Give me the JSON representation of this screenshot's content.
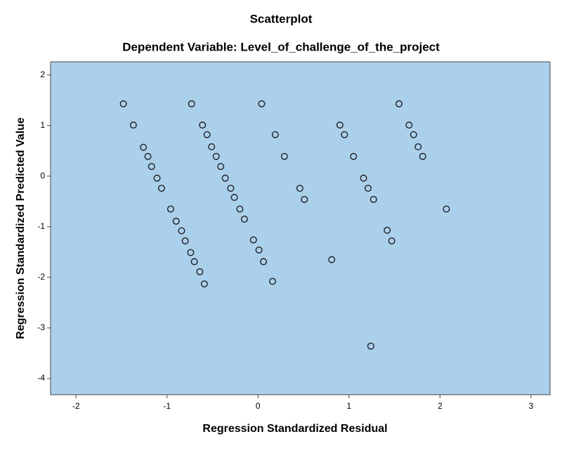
{
  "chart_data": {
    "type": "scatter",
    "title": "Scatterplot",
    "subtitle": "Dependent Variable: Level_of_challenge_of_the_project",
    "xlabel": "Regression Standardized Residual",
    "ylabel": "Regression Standardized Predicted Value",
    "plot_background": "#abd0ec",
    "color": "#1f1f1f",
    "xlim": [
      -2.28,
      3.21
    ],
    "ylim": [
      -4.32,
      2.26
    ],
    "xticks": [
      -2,
      -1,
      0,
      1,
      2,
      3
    ],
    "yticks": [
      2,
      1,
      0,
      -1,
      -2,
      -3,
      -4
    ],
    "x": [
      -1.48,
      -1.37,
      -1.26,
      -1.21,
      -1.17,
      -1.11,
      -1.06,
      -0.96,
      -0.9,
      -0.84,
      -0.8,
      -0.74,
      -0.7,
      -0.64,
      -0.59,
      -0.73,
      -0.61,
      -0.56,
      -0.51,
      -0.46,
      -0.41,
      -0.36,
      -0.3,
      -0.26,
      -0.2,
      -0.15,
      -0.05,
      0.01,
      0.06,
      0.16,
      0.04,
      0.19,
      0.29,
      0.46,
      0.51,
      0.81,
      0.9,
      0.95,
      1.05,
      1.16,
      1.21,
      1.27,
      1.42,
      1.47,
      1.24,
      1.55,
      1.66,
      1.71,
      1.76,
      1.81,
      2.07
    ],
    "values": [
      1.43,
      1.01,
      0.57,
      0.39,
      0.19,
      -0.04,
      -0.24,
      -0.65,
      -0.89,
      -1.08,
      -1.28,
      -1.51,
      -1.69,
      -1.89,
      -2.13,
      1.43,
      1.01,
      0.82,
      0.58,
      0.39,
      0.19,
      -0.04,
      -0.24,
      -0.42,
      -0.65,
      -0.85,
      -1.26,
      -1.46,
      -1.69,
      -2.08,
      1.43,
      0.82,
      0.39,
      -0.24,
      -0.46,
      -1.65,
      1.01,
      0.82,
      0.39,
      -0.04,
      -0.24,
      -0.46,
      -1.07,
      -1.28,
      -3.36,
      1.43,
      1.01,
      0.82,
      0.58,
      0.39,
      -0.65
    ]
  }
}
